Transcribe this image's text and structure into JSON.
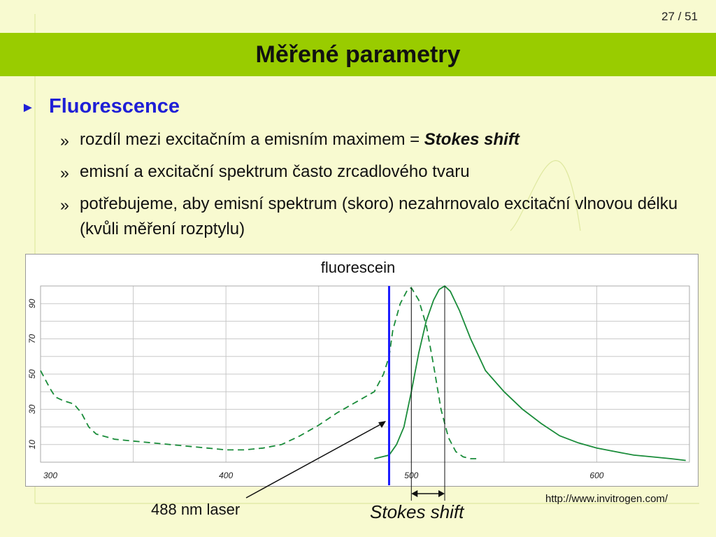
{
  "page_number": "27 / 51",
  "title": "Měřené parametry",
  "bullet": {
    "heading": "Fluorescence",
    "items": [
      {
        "text": "rozdíl mezi excitačním a emisním maximem = ",
        "emphasis": "Stokes shift"
      },
      {
        "text": "emisní a excitační spektrum často zrcadlového tvaru"
      },
      {
        "text": "potřebujeme, aby emisní spektrum (skoro) nezahrnovalo excitační vlnovou délku (kvůli měření rozptylu)"
      }
    ]
  },
  "colors": {
    "title_bar": "#99cc00",
    "accent_blue": "#1f1fd6",
    "series": "#1a8c3a",
    "laser": "#1a1aff"
  },
  "chart_data": {
    "type": "line",
    "title": "fluorescein",
    "xlabel": "",
    "ylabel": "",
    "xlim": [
      300,
      650
    ],
    "ylim": [
      0,
      100
    ],
    "x_ticks": [
      300,
      400,
      500,
      600
    ],
    "y_ticks": [
      10,
      30,
      50,
      70,
      90
    ],
    "grid": true,
    "series": [
      {
        "style": "dashed",
        "points": [
          [
            300,
            52
          ],
          [
            305,
            42
          ],
          [
            308,
            37
          ],
          [
            312,
            35
          ],
          [
            318,
            33
          ],
          [
            322,
            28
          ],
          [
            326,
            20
          ],
          [
            330,
            16
          ],
          [
            340,
            13
          ],
          [
            350,
            12
          ],
          [
            360,
            11
          ],
          [
            370,
            10
          ],
          [
            380,
            9
          ],
          [
            390,
            8
          ],
          [
            400,
            7
          ],
          [
            410,
            7
          ],
          [
            420,
            8
          ],
          [
            430,
            10
          ],
          [
            440,
            15
          ],
          [
            450,
            21
          ],
          [
            460,
            28
          ],
          [
            470,
            34
          ],
          [
            480,
            40
          ],
          [
            485,
            50
          ],
          [
            488,
            60
          ],
          [
            490,
            75
          ],
          [
            494,
            90
          ],
          [
            498,
            98
          ],
          [
            500,
            99
          ],
          [
            504,
            92
          ],
          [
            508,
            78
          ],
          [
            512,
            55
          ],
          [
            516,
            30
          ],
          [
            520,
            14
          ],
          [
            524,
            6
          ],
          [
            528,
            3
          ],
          [
            532,
            2
          ],
          [
            535,
            2
          ]
        ]
      },
      {
        "style": "solid",
        "points": [
          [
            480,
            2
          ],
          [
            488,
            4
          ],
          [
            492,
            10
          ],
          [
            496,
            20
          ],
          [
            500,
            40
          ],
          [
            504,
            62
          ],
          [
            508,
            80
          ],
          [
            512,
            92
          ],
          [
            515,
            98
          ],
          [
            518,
            100
          ],
          [
            521,
            97
          ],
          [
            526,
            86
          ],
          [
            532,
            70
          ],
          [
            540,
            52
          ],
          [
            550,
            40
          ],
          [
            560,
            30
          ],
          [
            570,
            22
          ],
          [
            580,
            15
          ],
          [
            590,
            11
          ],
          [
            600,
            8
          ],
          [
            610,
            6
          ],
          [
            620,
            4
          ],
          [
            630,
            3
          ],
          [
            640,
            2
          ],
          [
            648,
            1
          ]
        ]
      }
    ],
    "laser_line": {
      "x": 488,
      "label": "488 nm laser"
    },
    "stokes_shift": {
      "x_from": 500,
      "x_to": 518,
      "label": "Stokes shift"
    }
  },
  "source_url": "http://www.invitrogen.com/"
}
